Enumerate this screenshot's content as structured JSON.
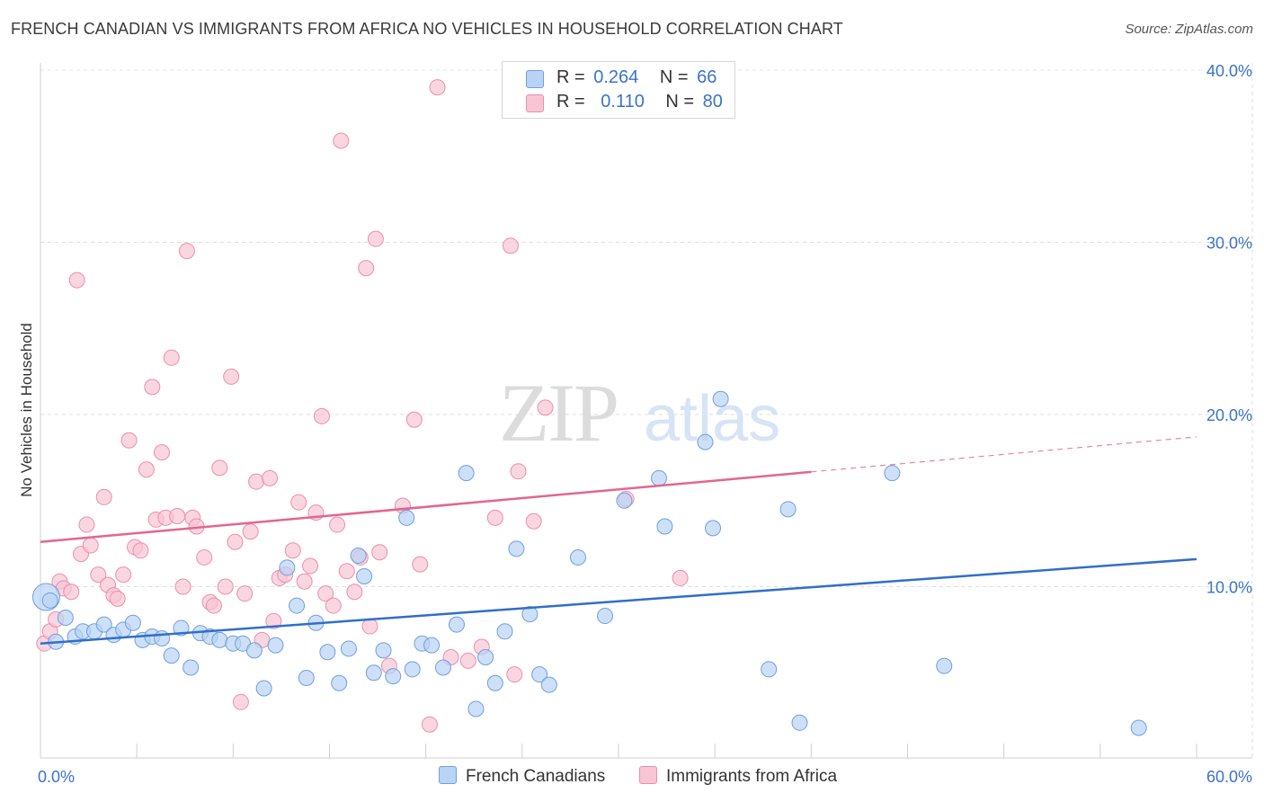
{
  "header": {
    "title": "FRENCH CANADIAN VS IMMIGRANTS FROM AFRICA NO VEHICLES IN HOUSEHOLD CORRELATION CHART",
    "source": "Source: ZipAtlas.com"
  },
  "legend": {
    "r_label": "R =",
    "n_label": "N =",
    "rows": [
      {
        "r": "0.264",
        "n": "66"
      },
      {
        "r": "0.110",
        "n": "80"
      }
    ]
  },
  "watermark": {
    "zip": "ZIP",
    "atlas": "atlas"
  },
  "colors": {
    "blue_fill": "#b8d3f3",
    "blue_stroke": "#6fa0dc",
    "blue_line": "#2f6fc9",
    "pink_fill": "#f8c5d4",
    "pink_stroke": "#ea8fae",
    "pink_line": "#e2668f",
    "axis_label": "#3a73c8"
  },
  "chart_data": {
    "type": "scatter",
    "title": "FRENCH CANADIAN VS IMMIGRANTS FROM AFRICA NO VEHICLES IN HOUSEHOLD CORRELATION CHART",
    "xlabel": "",
    "ylabel": "No Vehicles in Household",
    "xlim": [
      0,
      60
    ],
    "ylim": [
      0,
      40
    ],
    "x_tick_labels": [
      "0.0%",
      "60.0%"
    ],
    "y_ticks": [
      10,
      20,
      30,
      40
    ],
    "y_tick_labels": [
      "10.0%",
      "20.0%",
      "30.0%",
      "40.0%"
    ],
    "grid": true,
    "legend_position": "top-center",
    "series": [
      {
        "name": "French Canadians",
        "color": "#6fa0dc",
        "trend": {
          "x": [
            0,
            60
          ],
          "y": [
            6.7,
            11.6
          ],
          "dashed_from": null
        },
        "points": [
          [
            0.3,
            9.4
          ],
          [
            0.8,
            6.8
          ],
          [
            1.3,
            8.2
          ],
          [
            1.8,
            7.1
          ],
          [
            2.2,
            7.4
          ],
          [
            2.8,
            7.4
          ],
          [
            3.3,
            7.8
          ],
          [
            3.8,
            7.2
          ],
          [
            4.3,
            7.5
          ],
          [
            4.8,
            7.9
          ],
          [
            5.3,
            6.9
          ],
          [
            5.8,
            7.1
          ],
          [
            6.3,
            7.0
          ],
          [
            6.8,
            6.0
          ],
          [
            7.3,
            7.6
          ],
          [
            7.8,
            5.3
          ],
          [
            8.3,
            7.3
          ],
          [
            8.8,
            7.1
          ],
          [
            9.3,
            6.9
          ],
          [
            10.0,
            6.7
          ],
          [
            10.5,
            6.7
          ],
          [
            11.1,
            6.3
          ],
          [
            11.6,
            4.1
          ],
          [
            12.2,
            6.6
          ],
          [
            12.8,
            11.1
          ],
          [
            13.3,
            8.9
          ],
          [
            13.8,
            4.7
          ],
          [
            14.3,
            7.9
          ],
          [
            14.9,
            6.2
          ],
          [
            15.5,
            4.4
          ],
          [
            16.0,
            6.4
          ],
          [
            16.5,
            11.8
          ],
          [
            16.8,
            10.6
          ],
          [
            17.3,
            5.0
          ],
          [
            17.8,
            6.3
          ],
          [
            18.3,
            4.8
          ],
          [
            19.0,
            14.0
          ],
          [
            19.3,
            5.2
          ],
          [
            19.8,
            6.7
          ],
          [
            20.3,
            6.6
          ],
          [
            20.9,
            5.3
          ],
          [
            21.6,
            7.8
          ],
          [
            22.1,
            16.6
          ],
          [
            22.6,
            2.9
          ],
          [
            23.1,
            5.9
          ],
          [
            23.6,
            4.4
          ],
          [
            24.1,
            7.4
          ],
          [
            24.7,
            12.2
          ],
          [
            25.4,
            8.4
          ],
          [
            25.9,
            4.9
          ],
          [
            26.4,
            4.3
          ],
          [
            27.9,
            11.7
          ],
          [
            29.3,
            8.3
          ],
          [
            30.3,
            15.0
          ],
          [
            32.1,
            16.3
          ],
          [
            32.4,
            13.5
          ],
          [
            34.5,
            18.4
          ],
          [
            34.9,
            13.4
          ],
          [
            35.3,
            20.9
          ],
          [
            37.8,
            5.2
          ],
          [
            38.8,
            14.5
          ],
          [
            39.4,
            2.1
          ],
          [
            44.2,
            16.6
          ],
          [
            46.9,
            5.4
          ],
          [
            57.0,
            1.8
          ],
          [
            0.5,
            9.2
          ]
        ]
      },
      {
        "name": "Immigrants from Africa",
        "color": "#ea8fae",
        "trend": {
          "x": [
            0,
            60
          ],
          "y": [
            12.6,
            18.7
          ],
          "dashed_from": 40
        },
        "points": [
          [
            0.2,
            6.7
          ],
          [
            0.5,
            7.4
          ],
          [
            0.8,
            8.1
          ],
          [
            1.0,
            10.3
          ],
          [
            1.2,
            9.9
          ],
          [
            1.6,
            9.7
          ],
          [
            1.9,
            27.8
          ],
          [
            2.1,
            11.9
          ],
          [
            2.4,
            13.6
          ],
          [
            2.6,
            12.4
          ],
          [
            3.0,
            10.7
          ],
          [
            3.3,
            15.2
          ],
          [
            3.5,
            10.1
          ],
          [
            3.8,
            9.5
          ],
          [
            4.0,
            9.3
          ],
          [
            4.3,
            10.7
          ],
          [
            4.6,
            18.5
          ],
          [
            4.9,
            12.3
          ],
          [
            5.2,
            12.1
          ],
          [
            5.5,
            16.8
          ],
          [
            5.8,
            21.6
          ],
          [
            6.0,
            13.9
          ],
          [
            6.3,
            17.8
          ],
          [
            6.5,
            14.0
          ],
          [
            6.8,
            23.3
          ],
          [
            7.1,
            14.1
          ],
          [
            7.4,
            10.0
          ],
          [
            7.6,
            29.5
          ],
          [
            7.9,
            14.0
          ],
          [
            8.1,
            13.5
          ],
          [
            8.5,
            11.7
          ],
          [
            8.8,
            9.1
          ],
          [
            9.0,
            8.9
          ],
          [
            9.3,
            16.9
          ],
          [
            9.6,
            10.0
          ],
          [
            9.9,
            22.2
          ],
          [
            10.1,
            12.6
          ],
          [
            10.4,
            3.3
          ],
          [
            10.6,
            9.6
          ],
          [
            10.9,
            13.2
          ],
          [
            11.2,
            16.1
          ],
          [
            11.5,
            6.9
          ],
          [
            11.9,
            16.3
          ],
          [
            12.1,
            8.0
          ],
          [
            12.4,
            10.5
          ],
          [
            12.7,
            10.7
          ],
          [
            13.1,
            12.1
          ],
          [
            13.4,
            14.9
          ],
          [
            13.7,
            10.3
          ],
          [
            14.0,
            11.2
          ],
          [
            14.3,
            14.3
          ],
          [
            14.6,
            19.9
          ],
          [
            14.8,
            9.6
          ],
          [
            15.2,
            8.9
          ],
          [
            15.4,
            13.6
          ],
          [
            15.6,
            35.9
          ],
          [
            15.9,
            10.9
          ],
          [
            16.3,
            9.7
          ],
          [
            16.6,
            11.7
          ],
          [
            16.9,
            28.5
          ],
          [
            17.1,
            7.7
          ],
          [
            17.4,
            30.2
          ],
          [
            17.6,
            12.0
          ],
          [
            18.1,
            5.4
          ],
          [
            18.8,
            14.7
          ],
          [
            19.4,
            19.7
          ],
          [
            19.7,
            11.3
          ],
          [
            20.2,
            2.0
          ],
          [
            20.6,
            39.0
          ],
          [
            21.3,
            5.9
          ],
          [
            22.2,
            5.7
          ],
          [
            22.9,
            6.5
          ],
          [
            23.6,
            14.0
          ],
          [
            24.4,
            29.8
          ],
          [
            24.6,
            4.9
          ],
          [
            24.8,
            16.7
          ],
          [
            25.6,
            13.8
          ],
          [
            26.2,
            20.4
          ],
          [
            30.4,
            15.1
          ],
          [
            33.2,
            10.5
          ]
        ]
      }
    ]
  }
}
